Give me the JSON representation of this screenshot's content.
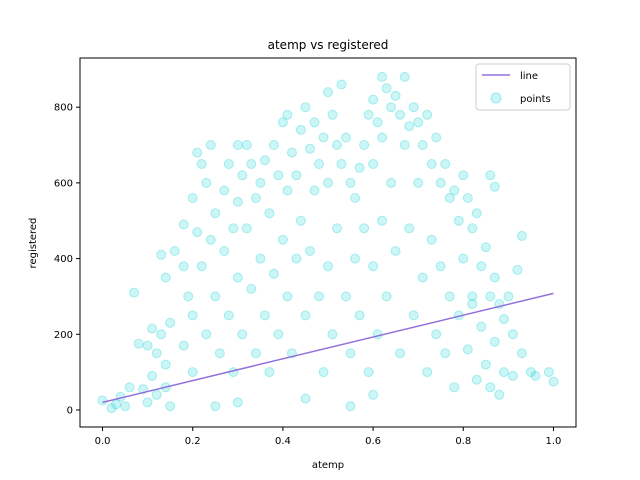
{
  "chart_data": {
    "type": "scatter",
    "title": "atemp vs registered",
    "xlabel": "atemp",
    "ylabel": "registered",
    "xlim": [
      -0.05,
      1.05
    ],
    "ylim": [
      -45,
      930
    ],
    "xticks": [
      0.0,
      0.2,
      0.4,
      0.6,
      0.8,
      1.0
    ],
    "xtick_labels": [
      "0.0",
      "0.2",
      "0.4",
      "0.6",
      "0.8",
      "1.0"
    ],
    "yticks": [
      0,
      200,
      400,
      600,
      800
    ],
    "ytick_labels": [
      "0",
      "200",
      "400",
      "600",
      "800"
    ],
    "grid": false,
    "legend": {
      "position": "top-right",
      "entries": [
        {
          "name": "line",
          "kind": "line",
          "color": "#9370db"
        },
        {
          "name": "points",
          "kind": "scatter",
          "color": "#00ced1"
        }
      ]
    },
    "series": [
      {
        "name": "points",
        "type": "scatter",
        "color": "#00ced1",
        "alpha": 0.2,
        "points": [
          [
            0.0,
            25
          ],
          [
            0.02,
            5
          ],
          [
            0.03,
            15
          ],
          [
            0.04,
            35
          ],
          [
            0.05,
            10
          ],
          [
            0.06,
            60
          ],
          [
            0.07,
            310
          ],
          [
            0.08,
            175
          ],
          [
            0.09,
            55
          ],
          [
            0.1,
            170
          ],
          [
            0.1,
            20
          ],
          [
            0.11,
            215
          ],
          [
            0.11,
            90
          ],
          [
            0.12,
            150
          ],
          [
            0.12,
            40
          ],
          [
            0.13,
            200
          ],
          [
            0.14,
            120
          ],
          [
            0.14,
            60
          ],
          [
            0.15,
            230
          ],
          [
            0.15,
            10
          ],
          [
            0.13,
            410
          ],
          [
            0.14,
            350
          ],
          [
            0.16,
            420
          ],
          [
            0.18,
            490
          ],
          [
            0.18,
            380
          ],
          [
            0.18,
            170
          ],
          [
            0.19,
            300
          ],
          [
            0.2,
            560
          ],
          [
            0.2,
            250
          ],
          [
            0.2,
            100
          ],
          [
            0.21,
            680
          ],
          [
            0.21,
            470
          ],
          [
            0.22,
            650
          ],
          [
            0.22,
            380
          ],
          [
            0.23,
            600
          ],
          [
            0.23,
            200
          ],
          [
            0.24,
            700
          ],
          [
            0.24,
            450
          ],
          [
            0.25,
            520
          ],
          [
            0.25,
            300
          ],
          [
            0.26,
            150
          ],
          [
            0.27,
            580
          ],
          [
            0.27,
            420
          ],
          [
            0.28,
            650
          ],
          [
            0.28,
            250
          ],
          [
            0.29,
            480
          ],
          [
            0.29,
            100
          ],
          [
            0.3,
            700
          ],
          [
            0.3,
            550
          ],
          [
            0.3,
            350
          ],
          [
            0.31,
            620
          ],
          [
            0.31,
            200
          ],
          [
            0.32,
            700
          ],
          [
            0.32,
            480
          ],
          [
            0.33,
            650
          ],
          [
            0.33,
            320
          ],
          [
            0.34,
            560
          ],
          [
            0.34,
            150
          ],
          [
            0.35,
            600
          ],
          [
            0.35,
            400
          ],
          [
            0.36,
            660
          ],
          [
            0.36,
            250
          ],
          [
            0.37,
            520
          ],
          [
            0.37,
            100
          ],
          [
            0.38,
            700
          ],
          [
            0.38,
            360
          ],
          [
            0.39,
            620
          ],
          [
            0.39,
            200
          ],
          [
            0.4,
            760
          ],
          [
            0.4,
            450
          ],
          [
            0.41,
            780
          ],
          [
            0.41,
            580
          ],
          [
            0.41,
            300
          ],
          [
            0.42,
            680
          ],
          [
            0.42,
            150
          ],
          [
            0.43,
            620
          ],
          [
            0.43,
            400
          ],
          [
            0.44,
            740
          ],
          [
            0.44,
            500
          ],
          [
            0.45,
            800
          ],
          [
            0.45,
            250
          ],
          [
            0.46,
            690
          ],
          [
            0.46,
            420
          ],
          [
            0.47,
            760
          ],
          [
            0.47,
            580
          ],
          [
            0.48,
            650
          ],
          [
            0.48,
            300
          ],
          [
            0.49,
            720
          ],
          [
            0.49,
            100
          ],
          [
            0.5,
            840
          ],
          [
            0.5,
            600
          ],
          [
            0.5,
            380
          ],
          [
            0.51,
            780
          ],
          [
            0.51,
            200
          ],
          [
            0.52,
            700
          ],
          [
            0.52,
            480
          ],
          [
            0.53,
            860
          ],
          [
            0.53,
            650
          ],
          [
            0.54,
            720
          ],
          [
            0.54,
            300
          ],
          [
            0.55,
            600
          ],
          [
            0.55,
            150
          ],
          [
            0.56,
            560
          ],
          [
            0.56,
            400
          ],
          [
            0.57,
            640
          ],
          [
            0.57,
            250
          ],
          [
            0.58,
            700
          ],
          [
            0.58,
            480
          ],
          [
            0.59,
            780
          ],
          [
            0.59,
            100
          ],
          [
            0.6,
            820
          ],
          [
            0.6,
            650
          ],
          [
            0.6,
            380
          ],
          [
            0.61,
            760
          ],
          [
            0.61,
            200
          ],
          [
            0.62,
            880
          ],
          [
            0.62,
            720
          ],
          [
            0.62,
            500
          ],
          [
            0.63,
            850
          ],
          [
            0.63,
            300
          ],
          [
            0.64,
            800
          ],
          [
            0.64,
            600
          ],
          [
            0.65,
            830
          ],
          [
            0.65,
            420
          ],
          [
            0.66,
            780
          ],
          [
            0.66,
            150
          ],
          [
            0.67,
            880
          ],
          [
            0.67,
            700
          ],
          [
            0.68,
            750
          ],
          [
            0.68,
            480
          ],
          [
            0.69,
            800
          ],
          [
            0.69,
            250
          ],
          [
            0.7,
            760
          ],
          [
            0.7,
            600
          ],
          [
            0.71,
            700
          ],
          [
            0.71,
            350
          ],
          [
            0.72,
            780
          ],
          [
            0.72,
            100
          ],
          [
            0.73,
            650
          ],
          [
            0.73,
            450
          ],
          [
            0.74,
            720
          ],
          [
            0.74,
            200
          ],
          [
            0.75,
            600
          ],
          [
            0.75,
            380
          ],
          [
            0.76,
            650
          ],
          [
            0.76,
            150
          ],
          [
            0.77,
            560
          ],
          [
            0.77,
            300
          ],
          [
            0.78,
            580
          ],
          [
            0.78,
            60
          ],
          [
            0.79,
            500
          ],
          [
            0.79,
            250
          ],
          [
            0.8,
            620
          ],
          [
            0.8,
            400
          ],
          [
            0.81,
            560
          ],
          [
            0.81,
            160
          ],
          [
            0.82,
            480
          ],
          [
            0.82,
            300
          ],
          [
            0.83,
            520
          ],
          [
            0.83,
            80
          ],
          [
            0.84,
            380
          ],
          [
            0.84,
            220
          ],
          [
            0.85,
            430
          ],
          [
            0.85,
            120
          ],
          [
            0.86,
            300
          ],
          [
            0.86,
            60
          ],
          [
            0.87,
            350
          ],
          [
            0.87,
            180
          ],
          [
            0.88,
            280
          ],
          [
            0.88,
            40
          ],
          [
            0.89,
            240
          ],
          [
            0.89,
            100
          ],
          [
            0.9,
            300
          ],
          [
            0.91,
            200
          ],
          [
            0.91,
            90
          ],
          [
            0.92,
            370
          ],
          [
            0.93,
            460
          ],
          [
            0.93,
            150
          ],
          [
            0.95,
            100
          ],
          [
            0.96,
            90
          ],
          [
            0.99,
            100
          ],
          [
            1.0,
            75
          ],
          [
            0.86,
            620
          ],
          [
            0.87,
            590
          ],
          [
            0.82,
            280
          ],
          [
            0.6,
            40
          ],
          [
            0.45,
            30
          ],
          [
            0.3,
            20
          ],
          [
            0.25,
            10
          ],
          [
            0.55,
            10
          ]
        ]
      },
      {
        "name": "line",
        "type": "line",
        "color": "#9370db",
        "points": [
          [
            0.0,
            20
          ],
          [
            1.0,
            308
          ]
        ]
      }
    ]
  }
}
